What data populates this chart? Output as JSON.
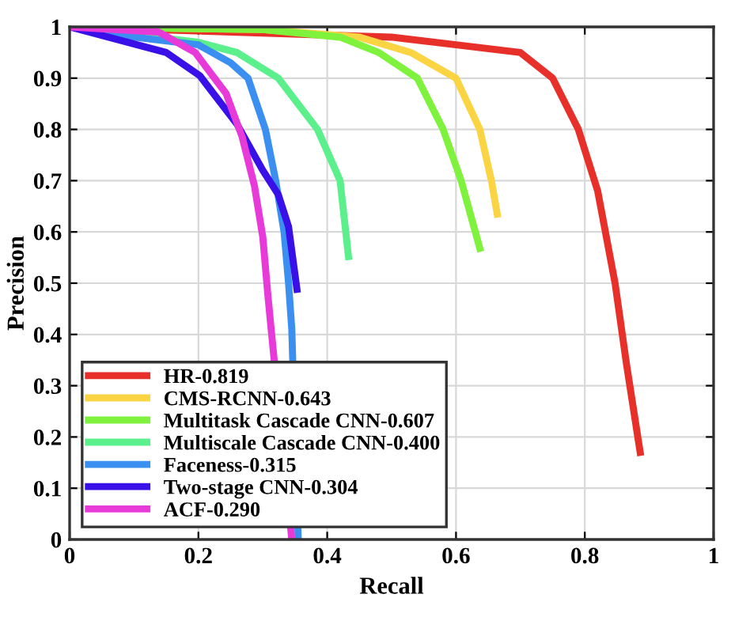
{
  "chart_data": {
    "type": "line",
    "xlabel": "Recall",
    "ylabel": "Precision",
    "xlim": [
      0,
      1
    ],
    "ylim": [
      0,
      1
    ],
    "xticks": [
      0,
      0.2,
      0.4,
      0.6,
      0.8,
      1
    ],
    "yticks": [
      0,
      0.1,
      0.2,
      0.3,
      0.4,
      0.5,
      0.6,
      0.7,
      0.8,
      0.9,
      1
    ],
    "grid": true,
    "legend": "bottom left",
    "marker": "none",
    "line_style": "solid",
    "series": [
      {
        "name": "HR-0.819",
        "color": "#e8302a",
        "x": [
          0,
          0.5,
          0.6,
          0.7,
          0.75,
          0.79,
          0.82,
          0.847,
          0.865,
          0.886
        ],
        "values": [
          1,
          0.98,
          0.965,
          0.95,
          0.9,
          0.8,
          0.68,
          0.5,
          0.34,
          0.17
        ]
      },
      {
        "name": "CMS-RCNN-0.643",
        "color": "#fbd444",
        "x": [
          0,
          0.3,
          0.45,
          0.53,
          0.6,
          0.637,
          0.655,
          0.664
        ],
        "values": [
          1,
          0.995,
          0.98,
          0.95,
          0.9,
          0.8,
          0.7,
          0.635
        ]
      },
      {
        "name": "Multitask Cascade CNN-0.607",
        "color": "#7ef23c",
        "x": [
          0,
          0.3,
          0.42,
          0.48,
          0.54,
          0.58,
          0.608,
          0.637
        ],
        "values": [
          1,
          0.995,
          0.98,
          0.95,
          0.9,
          0.8,
          0.7,
          0.568
        ]
      },
      {
        "name": "Multiscale Cascade CNN-0.400",
        "color": "#5cf08c",
        "x": [
          0,
          0.2,
          0.26,
          0.324,
          0.385,
          0.42,
          0.433
        ],
        "values": [
          1,
          0.97,
          0.95,
          0.9,
          0.8,
          0.7,
          0.552
        ]
      },
      {
        "name": "Faceness-0.315",
        "color": "#3a8ff0",
        "x": [
          0,
          0.1,
          0.2,
          0.25,
          0.277,
          0.304,
          0.32,
          0.333,
          0.34,
          0.345,
          0.355
        ],
        "values": [
          1,
          0.98,
          0.965,
          0.93,
          0.9,
          0.8,
          0.7,
          0.6,
          0.5,
          0.41,
          0
        ]
      },
      {
        "name": "Two-stage CNN-0.304",
        "color": "#3a10e8",
        "x": [
          0,
          0.15,
          0.202,
          0.26,
          0.3,
          0.324,
          0.34,
          0.353
        ],
        "values": [
          1,
          0.95,
          0.905,
          0.81,
          0.72,
          0.673,
          0.61,
          0.488
        ]
      },
      {
        "name": "ACF-0.290",
        "color": "#e83ad8",
        "x": [
          0,
          0.138,
          0.195,
          0.243,
          0.268,
          0.287,
          0.3,
          0.308,
          0.313,
          0.345
        ],
        "values": [
          1,
          0.99,
          0.95,
          0.87,
          0.785,
          0.69,
          0.59,
          0.475,
          0.41,
          0
        ]
      }
    ]
  }
}
